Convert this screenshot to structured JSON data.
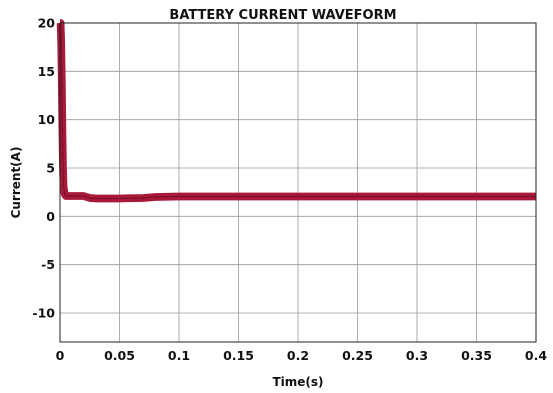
{
  "chart_data": {
    "type": "line",
    "title": "BATTERY CURRENT WAVEFORM",
    "xlabel": "Time(s)",
    "ylabel": "Current(A)",
    "xlim": [
      0,
      0.4
    ],
    "ylim": [
      -13,
      20
    ],
    "x_ticks": [
      0,
      0.05,
      0.1,
      0.15,
      0.2,
      0.25,
      0.3,
      0.35,
      0.4
    ],
    "x_tick_labels": [
      "0",
      "0.05",
      "0.1",
      "0.15",
      "0.2",
      "0.25",
      "0.3",
      "0.35",
      "0.4"
    ],
    "y_ticks": [
      -10,
      -5,
      0,
      5,
      10,
      15,
      20
    ],
    "y_tick_labels": [
      "-10",
      "-5",
      "0",
      "5",
      "10",
      "15",
      "20"
    ],
    "grid": true,
    "series": [
      {
        "color": "#a8193a",
        "band_width_amps": 0.8,
        "x": [
          0,
          0.0005,
          0.001,
          0.0015,
          0.002,
          0.0025,
          0.003,
          0.004,
          0.005,
          0.01,
          0.02,
          0.025,
          0.03,
          0.05,
          0.07,
          0.08,
          0.1,
          0.15,
          0.2,
          0.25,
          0.3,
          0.35,
          0.4
        ],
        "y": [
          20,
          20,
          18,
          14,
          9,
          5,
          3,
          2.3,
          2.1,
          2.1,
          2.1,
          1.9,
          1.85,
          1.85,
          1.9,
          2.0,
          2.05,
          2.05,
          2.05,
          2.05,
          2.05,
          2.05,
          2.05
        ]
      }
    ]
  }
}
